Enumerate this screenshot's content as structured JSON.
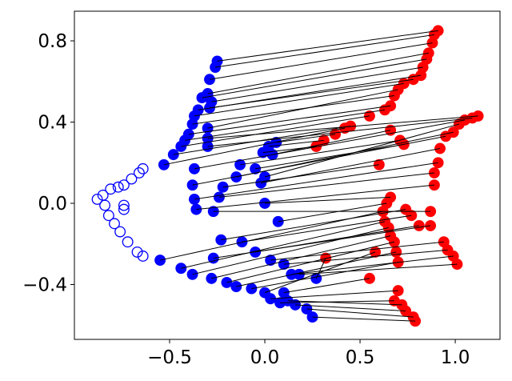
{
  "chart_data": {
    "type": "scatter",
    "xlim": [
      -1.0,
      1.235
    ],
    "ylim": [
      -0.67,
      0.946
    ],
    "xticks": [
      {
        "value": -0.5,
        "label": "−0.5"
      },
      {
        "value": 0,
        "label": "0.0"
      },
      0.5,
      {
        "value": 1,
        "label": "1.0"
      }
    ],
    "yticks": [
      {
        "value": -0.4,
        "label": "−0.4"
      },
      {
        "value": 0,
        "label": "0.0"
      },
      0.4,
      {
        "value": 0.8,
        "label": "0.8"
      }
    ],
    "series": [
      {
        "color": "#0000ff",
        "filled": true,
        "x": [
          -0.25,
          -0.26,
          -0.29,
          -0.3,
          -0.28,
          -0.33,
          -0.29,
          -0.35,
          -0.37,
          -0.3,
          -0.38,
          -0.4,
          -0.42,
          -0.3,
          -0.44,
          -0.3,
          -0.48,
          -0.53,
          -0.37,
          0.06,
          0.02,
          -0.01,
          0.04,
          -0.13,
          -0.05,
          0.0,
          -0.15,
          -0.38,
          -0.22,
          -0.02,
          -0.37,
          -0.24,
          -0.36,
          0.0,
          -0.27,
          0.07,
          -0.23,
          -0.55,
          -0.27,
          -0.12,
          -0.05,
          -0.44,
          -0.38,
          -0.28,
          0.03,
          0.1,
          -0.2,
          -0.15,
          -0.07,
          0.14,
          0.18,
          0.0,
          0.03,
          0.08,
          0.12,
          0.16,
          0.22,
          0.25,
          0.1,
          0.27
        ],
        "y": [
          0.7,
          0.67,
          0.61,
          0.54,
          0.5,
          0.52,
          0.47,
          0.46,
          0.43,
          0.37,
          0.39,
          0.34,
          0.31,
          0.32,
          0.28,
          0.28,
          0.24,
          0.19,
          0.17,
          0.3,
          0.28,
          0.25,
          0.24,
          0.19,
          0.17,
          0.13,
          0.13,
          0.09,
          0.08,
          0.1,
          0.02,
          0.03,
          -0.03,
          0.0,
          -0.04,
          -0.09,
          -0.18,
          -0.28,
          -0.27,
          -0.19,
          -0.24,
          -0.32,
          -0.35,
          -0.37,
          -0.28,
          -0.3,
          -0.39,
          -0.41,
          -0.42,
          -0.35,
          -0.35,
          -0.44,
          -0.47,
          -0.49,
          -0.48,
          -0.5,
          -0.52,
          -0.56,
          -0.44,
          -0.37
        ]
      },
      {
        "color": "#ff0000",
        "filled": true,
        "x": [
          0.91,
          0.89,
          0.88,
          0.86,
          0.83,
          0.85,
          0.78,
          0.82,
          0.73,
          0.7,
          0.68,
          0.66,
          0.63,
          1.12,
          0.55,
          1.09,
          0.45,
          0.42,
          1.05,
          0.37,
          0.31,
          0.27,
          0.66,
          0.71,
          0.73,
          1.02,
          0.99,
          0.95,
          0.6,
          0.92,
          0.91,
          0.89,
          0.89,
          0.66,
          0.87,
          0.64,
          0.74,
          0.62,
          0.87,
          0.77,
          0.81,
          0.63,
          0.65,
          0.66,
          0.94,
          0.96,
          0.68,
          0.69,
          0.7,
          0.99,
          1.01,
          0.58,
          0.7,
          0.68,
          0.72,
          0.74,
          0.78,
          0.79,
          0.55,
          0.32
        ],
        "y": [
          0.85,
          0.83,
          0.79,
          0.74,
          0.67,
          0.71,
          0.61,
          0.63,
          0.59,
          0.56,
          0.53,
          0.48,
          0.46,
          0.43,
          0.43,
          0.42,
          0.38,
          0.37,
          0.41,
          0.34,
          0.31,
          0.28,
          0.36,
          0.31,
          0.29,
          0.39,
          0.35,
          0.33,
          0.19,
          0.27,
          0.2,
          0.15,
          0.09,
          0.03,
          -0.04,
          0.0,
          -0.03,
          -0.04,
          -0.11,
          -0.06,
          -0.11,
          -0.09,
          -0.12,
          -0.16,
          -0.19,
          -0.23,
          -0.19,
          -0.24,
          -0.29,
          -0.26,
          -0.3,
          -0.24,
          -0.43,
          -0.48,
          -0.5,
          -0.53,
          -0.56,
          -0.58,
          -0.37,
          -0.27
        ]
      },
      {
        "color": "#0000ff",
        "filled": false,
        "x": [
          -0.88,
          -0.85,
          -0.81,
          -0.77,
          -0.74,
          -0.7,
          -0.66,
          -0.64,
          -0.84,
          -0.82,
          -0.79,
          -0.76,
          -0.72,
          -0.67,
          -0.64,
          -0.74,
          -0.74
        ],
        "y": [
          0.02,
          0.04,
          0.07,
          0.08,
          0.09,
          0.12,
          0.15,
          0.17,
          -0.01,
          -0.06,
          -0.1,
          -0.14,
          -0.19,
          -0.24,
          -0.26,
          -0.03,
          -0.01
        ]
      }
    ],
    "links": {
      "from": 0,
      "to": 1,
      "color": "#000000"
    }
  }
}
